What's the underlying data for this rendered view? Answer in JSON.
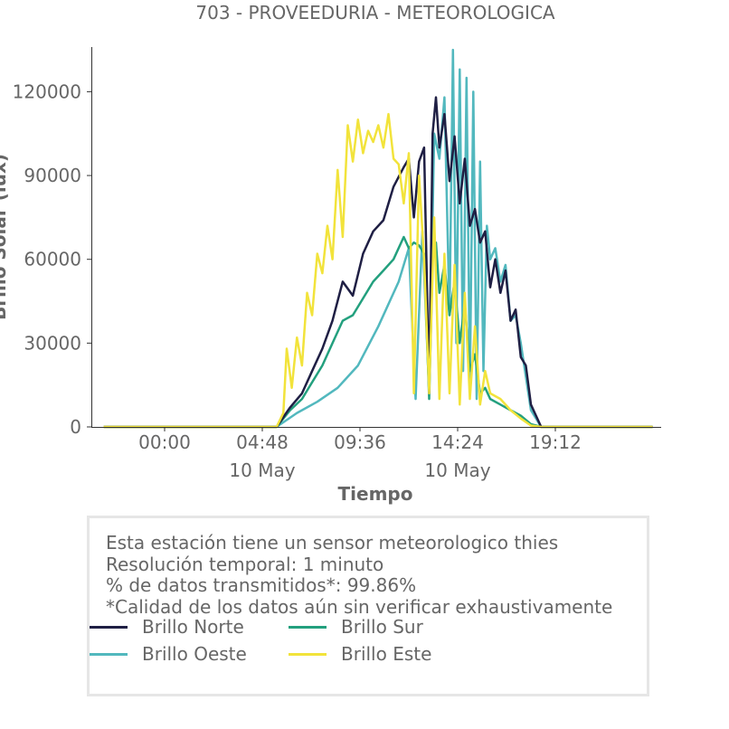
{
  "chart_data": {
    "type": "line",
    "title": "703 - PROVEEDURIA - METEOROLOGICA",
    "xlabel": "Tiempo",
    "ylabel": "Brillo Solar (lux)",
    "x_range": [
      "2023-05-09T20:24",
      "2023-05-11T00:24"
    ],
    "ylim": [
      0,
      136000
    ],
    "x_ticks": [
      {
        "x": "2023-05-10T00:00",
        "label": "00:00",
        "sublabel": ""
      },
      {
        "x": "2023-05-10T04:48",
        "label": "04:48",
        "sublabel": "10 May"
      },
      {
        "x": "2023-05-10T09:36",
        "label": "09:36",
        "sublabel": ""
      },
      {
        "x": "2023-05-10T14:24",
        "label": "14:24",
        "sublabel": "10 May"
      },
      {
        "x": "2023-05-10T19:12",
        "label": "19:12",
        "sublabel": ""
      }
    ],
    "y_ticks": [
      0,
      30000,
      60000,
      90000,
      120000
    ],
    "grid": false,
    "legend_position": "bottom",
    "series": [
      {
        "name": "Brillo Norte",
        "color": "#1f1f44",
        "x": [
          "2023-05-09T21:00",
          "2023-05-10T05:30",
          "2023-05-10T06:10",
          "2023-05-10T06:45",
          "2023-05-10T07:15",
          "2023-05-10T07:45",
          "2023-05-10T08:15",
          "2023-05-10T08:45",
          "2023-05-10T09:15",
          "2023-05-10T09:45",
          "2023-05-10T10:15",
          "2023-05-10T10:45",
          "2023-05-10T11:15",
          "2023-05-10T11:45",
          "2023-05-10T12:00",
          "2023-05-10T12:15",
          "2023-05-10T12:30",
          "2023-05-10T12:45",
          "2023-05-10T13:00",
          "2023-05-10T13:10",
          "2023-05-10T13:20",
          "2023-05-10T13:30",
          "2023-05-10T13:45",
          "2023-05-10T14:00",
          "2023-05-10T14:15",
          "2023-05-10T14:30",
          "2023-05-10T14:45",
          "2023-05-10T15:00",
          "2023-05-10T15:15",
          "2023-05-10T15:30",
          "2023-05-10T15:45",
          "2023-05-10T16:00",
          "2023-05-10T16:15",
          "2023-05-10T16:30",
          "2023-05-10T16:45",
          "2023-05-10T17:00",
          "2023-05-10T17:15",
          "2023-05-10T17:30",
          "2023-05-10T17:45",
          "2023-05-10T18:00",
          "2023-05-10T18:30",
          "2023-05-10T23:59"
        ],
        "values": [
          0,
          0,
          7000,
          12000,
          20000,
          28000,
          38000,
          52000,
          47000,
          62000,
          70000,
          74000,
          86000,
          93000,
          96000,
          75000,
          95000,
          100000,
          12000,
          105000,
          118000,
          100000,
          112000,
          88000,
          104000,
          80000,
          96000,
          72000,
          78000,
          66000,
          70000,
          50000,
          60000,
          48000,
          56000,
          38000,
          42000,
          25000,
          22000,
          8000,
          0,
          0
        ]
      },
      {
        "name": "Brillo Sur",
        "color": "#23a07e",
        "x": [
          "2023-05-09T21:00",
          "2023-05-10T05:30",
          "2023-05-10T06:10",
          "2023-05-10T06:45",
          "2023-05-10T07:15",
          "2023-05-10T07:45",
          "2023-05-10T08:15",
          "2023-05-10T08:45",
          "2023-05-10T09:15",
          "2023-05-10T09:45",
          "2023-05-10T10:15",
          "2023-05-10T10:45",
          "2023-05-10T11:15",
          "2023-05-10T11:45",
          "2023-05-10T12:00",
          "2023-05-10T12:15",
          "2023-05-10T12:30",
          "2023-05-10T12:45",
          "2023-05-10T13:00",
          "2023-05-10T13:10",
          "2023-05-10T13:20",
          "2023-05-10T13:30",
          "2023-05-10T13:45",
          "2023-05-10T14:00",
          "2023-05-10T14:15",
          "2023-05-10T14:30",
          "2023-05-10T14:45",
          "2023-05-10T15:00",
          "2023-05-10T15:15",
          "2023-05-10T15:30",
          "2023-05-10T15:45",
          "2023-05-10T16:00",
          "2023-05-10T16:30",
          "2023-05-10T17:00",
          "2023-05-10T17:30",
          "2023-05-10T18:00",
          "2023-05-10T18:30",
          "2023-05-10T23:59"
        ],
        "values": [
          0,
          0,
          6000,
          10000,
          16000,
          22000,
          30000,
          38000,
          40000,
          46000,
          52000,
          56000,
          60000,
          68000,
          64000,
          66000,
          65000,
          62000,
          10000,
          60000,
          66000,
          48000,
          58000,
          40000,
          52000,
          30000,
          44000,
          20000,
          26000,
          12000,
          14000,
          10000,
          8000,
          6000,
          4000,
          1000,
          0,
          0
        ]
      },
      {
        "name": "Brillo Oeste",
        "color": "#52b8be",
        "x": [
          "2023-05-09T21:00",
          "2023-05-10T05:30",
          "2023-05-10T06:30",
          "2023-05-10T07:30",
          "2023-05-10T08:30",
          "2023-05-10T09:30",
          "2023-05-10T10:30",
          "2023-05-10T11:30",
          "2023-05-10T12:00",
          "2023-05-10T12:20",
          "2023-05-10T12:40",
          "2023-05-10T13:00",
          "2023-05-10T13:15",
          "2023-05-10T13:30",
          "2023-05-10T13:45",
          "2023-05-10T14:00",
          "2023-05-10T14:10",
          "2023-05-10T14:20",
          "2023-05-10T14:30",
          "2023-05-10T14:40",
          "2023-05-10T14:50",
          "2023-05-10T15:00",
          "2023-05-10T15:10",
          "2023-05-10T15:20",
          "2023-05-10T15:30",
          "2023-05-10T15:40",
          "2023-05-10T15:50",
          "2023-05-10T16:00",
          "2023-05-10T16:15",
          "2023-05-10T16:30",
          "2023-05-10T16:45",
          "2023-05-10T17:00",
          "2023-05-10T17:15",
          "2023-05-10T17:30",
          "2023-05-10T17:45",
          "2023-05-10T18:00",
          "2023-05-10T18:30",
          "2023-05-10T23:59"
        ],
        "values": [
          0,
          0,
          5000,
          9000,
          14000,
          22000,
          36000,
          52000,
          64000,
          10000,
          70000,
          12000,
          105000,
          96000,
          118000,
          40000,
          135000,
          30000,
          128000,
          20000,
          125000,
          15000,
          120000,
          10000,
          95000,
          20000,
          72000,
          60000,
          64000,
          52000,
          58000,
          38000,
          40000,
          30000,
          18000,
          6000,
          0,
          0
        ]
      },
      {
        "name": "Brillo Este",
        "color": "#f2e33b",
        "x": [
          "2023-05-09T21:00",
          "2023-05-10T05:30",
          "2023-05-10T05:50",
          "2023-05-10T06:00",
          "2023-05-10T06:15",
          "2023-05-10T06:30",
          "2023-05-10T06:45",
          "2023-05-10T07:00",
          "2023-05-10T07:15",
          "2023-05-10T07:30",
          "2023-05-10T07:45",
          "2023-05-10T08:00",
          "2023-05-10T08:15",
          "2023-05-10T08:30",
          "2023-05-10T08:45",
          "2023-05-10T09:00",
          "2023-05-10T09:15",
          "2023-05-10T09:30",
          "2023-05-10T09:45",
          "2023-05-10T10:00",
          "2023-05-10T10:15",
          "2023-05-10T10:30",
          "2023-05-10T10:45",
          "2023-05-10T11:00",
          "2023-05-10T11:15",
          "2023-05-10T11:30",
          "2023-05-10T11:45",
          "2023-05-10T12:00",
          "2023-05-10T12:15",
          "2023-05-10T12:30",
          "2023-05-10T12:45",
          "2023-05-10T13:00",
          "2023-05-10T13:15",
          "2023-05-10T13:30",
          "2023-05-10T13:45",
          "2023-05-10T14:00",
          "2023-05-10T14:15",
          "2023-05-10T14:30",
          "2023-05-10T14:45",
          "2023-05-10T15:00",
          "2023-05-10T15:15",
          "2023-05-10T15:30",
          "2023-05-10T15:45",
          "2023-05-10T16:00",
          "2023-05-10T16:30",
          "2023-05-10T17:00",
          "2023-05-10T17:30",
          "2023-05-10T18:00",
          "2023-05-10T18:30",
          "2023-05-10T23:59"
        ],
        "values": [
          0,
          0,
          5000,
          28000,
          14000,
          32000,
          22000,
          48000,
          40000,
          62000,
          55000,
          72000,
          60000,
          92000,
          68000,
          108000,
          95000,
          110000,
          98000,
          106000,
          102000,
          108000,
          100000,
          112000,
          96000,
          94000,
          80000,
          98000,
          12000,
          90000,
          60000,
          12000,
          75000,
          10000,
          62000,
          12000,
          58000,
          8000,
          48000,
          10000,
          36000,
          8000,
          20000,
          12000,
          10000,
          6000,
          3000,
          500,
          0,
          0
        ]
      }
    ]
  },
  "info": {
    "lines": [
      "Esta estación tiene un sensor meteorologico thies",
      "Resolución temporal: 1 minuto",
      "% de datos transmitidos*: 99.86%",
      "*Calidad de los datos aún sin verificar exhaustivamente"
    ]
  }
}
